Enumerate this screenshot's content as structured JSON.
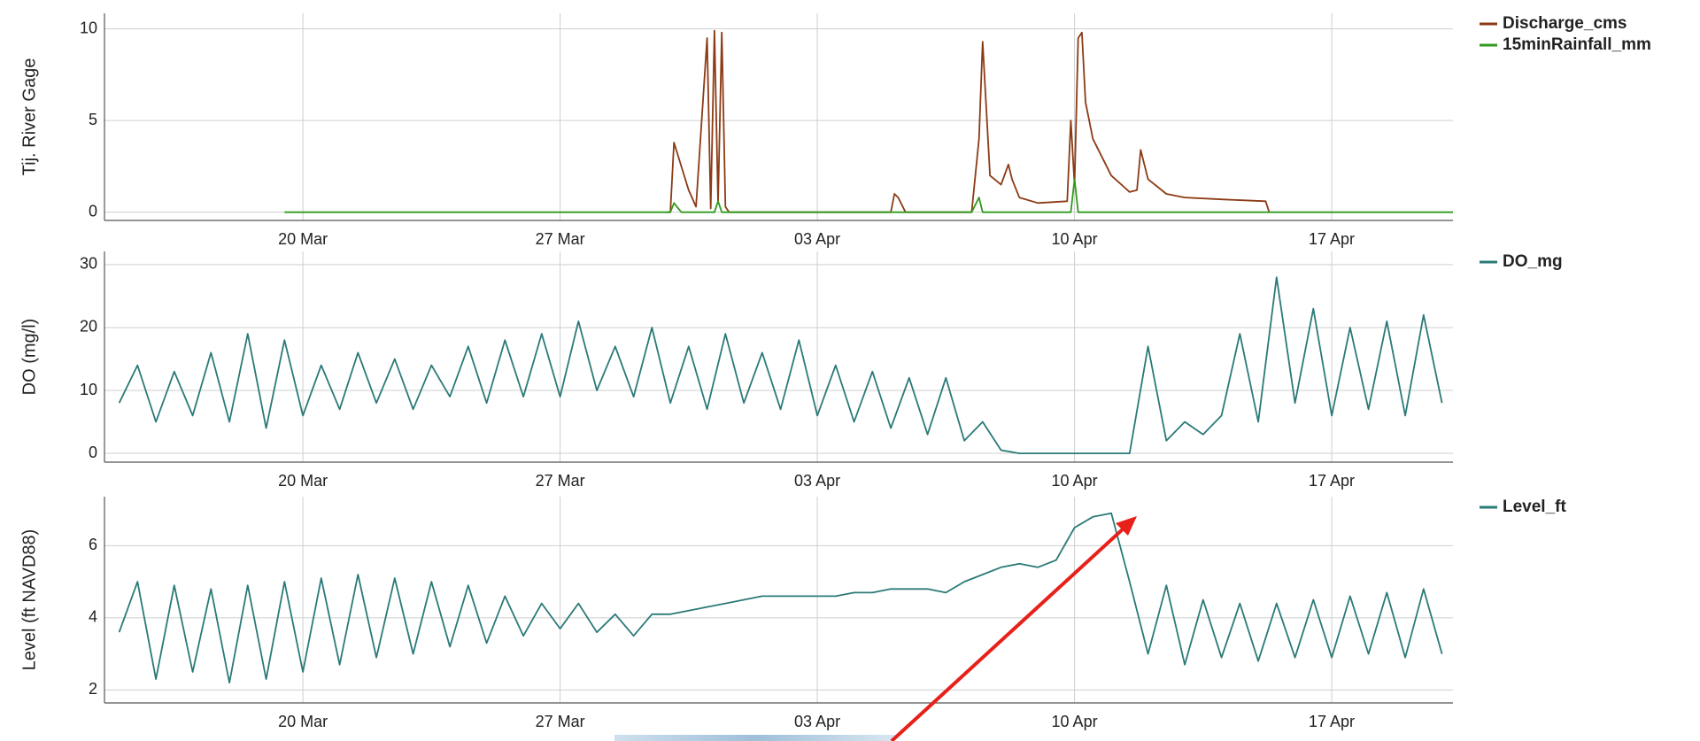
{
  "chart_data": [
    {
      "type": "line",
      "y_label": "Tij. River Gage",
      "grid": true,
      "legend": "right",
      "x": [
        19.5,
        29.9,
        30.0,
        30.1,
        30.3,
        30.5,
        30.7,
        31.0,
        31.1,
        31.2,
        31.3,
        31.4,
        31.5,
        31.6,
        36.0,
        36.1,
        36.2,
        36.4,
        38.2,
        38.4,
        38.5,
        38.7,
        39.0,
        39.2,
        39.3,
        39.5,
        40.0,
        40.8,
        40.9,
        41.0,
        41.1,
        41.2,
        41.3,
        41.5,
        42.0,
        42.5,
        42.7,
        42.8,
        43.0,
        43.5,
        44.0,
        45.0,
        46.2,
        46.3,
        51.3
      ],
      "series": [
        {
          "name": "Discharge_cms",
          "color": "#8b3a14",
          "values": [
            null,
            0,
            0,
            3.8,
            2.5,
            1.2,
            0.3,
            9.5,
            0.2,
            9.9,
            0.5,
            9.8,
            0.3,
            0,
            0,
            1.0,
            0.8,
            0,
            0,
            4.0,
            9.3,
            2.0,
            1.5,
            2.6,
            1.8,
            0.8,
            0.5,
            0.6,
            5.0,
            1.5,
            9.5,
            9.8,
            6.0,
            4.0,
            2.0,
            1.1,
            1.2,
            3.4,
            1.8,
            1.0,
            0.8,
            0.7,
            0.6,
            0,
            null
          ]
        },
        {
          "name": "15minRainfall_mm",
          "color": "#2f9a1c",
          "values": [
            0,
            0,
            0,
            0.5,
            0,
            0,
            0,
            0,
            0,
            0,
            0.6,
            0,
            0,
            0,
            0,
            0,
            0,
            0,
            0,
            0.8,
            0,
            0,
            0,
            0,
            0,
            0,
            0,
            0,
            0,
            1.8,
            0,
            0,
            0,
            0,
            0,
            0,
            0,
            0,
            0,
            0,
            0,
            0,
            0,
            0,
            0
          ]
        }
      ],
      "xlim": [
        14.6,
        51.3
      ],
      "xticks": [
        {
          "value": 20,
          "label": "20 Mar"
        },
        {
          "value": 27,
          "label": "27 Mar"
        },
        {
          "value": 34,
          "label": "03 Apr"
        },
        {
          "value": 41,
          "label": "10 Apr"
        },
        {
          "value": 48,
          "label": "17 Apr"
        }
      ],
      "ylim": [
        -0.45,
        10.85
      ],
      "yticks": [
        0,
        5,
        10
      ]
    },
    {
      "type": "line",
      "y_label": "DO (mg/l)",
      "grid": true,
      "legend": "right",
      "x": [
        15,
        15.5,
        16,
        16.5,
        17,
        17.5,
        18,
        18.5,
        19,
        19.5,
        20,
        20.5,
        21,
        21.5,
        22,
        22.5,
        23,
        23.5,
        24,
        24.5,
        25,
        25.5,
        26,
        26.5,
        27,
        27.5,
        28,
        28.5,
        29,
        29.5,
        30,
        30.5,
        31,
        31.5,
        32,
        32.5,
        33,
        33.5,
        34,
        34.5,
        35,
        35.5,
        36,
        36.5,
        37,
        37.5,
        38,
        38.5,
        39,
        39.5,
        40,
        40.5,
        41,
        41.5,
        42,
        42.5,
        43,
        43.5,
        44,
        44.5,
        45,
        45.5,
        46,
        46.5,
        47,
        47.5,
        48,
        48.5,
        49,
        49.5,
        50,
        50.5,
        51
      ],
      "series": [
        {
          "name": "DO_mg",
          "color": "#2a7a78",
          "values": [
            8,
            14,
            5,
            13,
            6,
            16,
            5,
            19,
            4,
            18,
            6,
            14,
            7,
            16,
            8,
            15,
            7,
            14,
            9,
            17,
            8,
            18,
            9,
            19,
            9,
            21,
            10,
            17,
            9,
            20,
            8,
            17,
            7,
            19,
            8,
            16,
            7,
            18,
            6,
            14,
            5,
            13,
            4,
            12,
            3,
            12,
            2,
            5,
            0.5,
            0,
            0,
            0,
            0,
            0,
            0,
            0,
            17,
            2,
            5,
            3,
            6,
            19,
            5,
            28,
            8,
            23,
            6,
            20,
            7,
            21,
            6,
            22,
            8
          ]
        }
      ],
      "xlim": [
        14.6,
        51.3
      ],
      "xticks": [
        {
          "value": 20,
          "label": "20 Mar"
        },
        {
          "value": 27,
          "label": "27 Mar"
        },
        {
          "value": 34,
          "label": "03 Apr"
        },
        {
          "value": 41,
          "label": "10 Apr"
        },
        {
          "value": 48,
          "label": "17 Apr"
        }
      ],
      "ylim": [
        -1.4,
        32.1
      ],
      "yticks": [
        0,
        10,
        20,
        30
      ]
    },
    {
      "type": "line",
      "y_label": "Level (ft NAVD88)",
      "grid": true,
      "legend": "right",
      "x": [
        15,
        15.5,
        16,
        16.5,
        17,
        17.5,
        18,
        18.5,
        19,
        19.5,
        20,
        20.5,
        21,
        21.5,
        22,
        22.5,
        23,
        23.5,
        24,
        24.5,
        25,
        25.5,
        26,
        26.5,
        27,
        27.5,
        28,
        28.5,
        29,
        29.5,
        30,
        30.5,
        31,
        31.5,
        32,
        32.5,
        33,
        33.5,
        34,
        34.5,
        35,
        35.5,
        36,
        36.5,
        37,
        37.5,
        38,
        38.5,
        39,
        39.5,
        40,
        40.5,
        41,
        41.5,
        42,
        42.5,
        43,
        43.5,
        44,
        44.5,
        45,
        45.5,
        46,
        46.5,
        47,
        47.5,
        48,
        48.5,
        49,
        49.5,
        50,
        50.5,
        51
      ],
      "series": [
        {
          "name": "Level_ft",
          "color": "#2a7a78",
          "values": [
            3.6,
            5.0,
            2.3,
            4.9,
            2.5,
            4.8,
            2.2,
            4.9,
            2.3,
            5.0,
            2.5,
            5.1,
            2.7,
            5.2,
            2.9,
            5.1,
            3.0,
            5.0,
            3.2,
            4.9,
            3.3,
            4.6,
            3.5,
            4.4,
            3.7,
            4.4,
            3.6,
            4.1,
            3.5,
            4.1,
            4.1,
            4.2,
            4.3,
            4.4,
            4.5,
            4.6,
            4.6,
            4.6,
            4.6,
            4.6,
            4.7,
            4.7,
            4.8,
            4.8,
            4.8,
            4.7,
            5.0,
            5.2,
            5.4,
            5.5,
            5.4,
            5.6,
            6.5,
            6.8,
            6.9,
            5.0,
            3.0,
            4.9,
            2.7,
            4.5,
            2.9,
            4.4,
            2.8,
            4.4,
            2.9,
            4.5,
            2.9,
            4.6,
            3.0,
            4.7,
            2.9,
            4.8,
            3.0
          ]
        }
      ],
      "xlim": [
        14.6,
        51.3
      ],
      "xticks": [
        {
          "value": 20,
          "label": "20 Mar"
        },
        {
          "value": 27,
          "label": "27 Mar"
        },
        {
          "value": 34,
          "label": "03 Apr"
        },
        {
          "value": 41,
          "label": "10 Apr"
        },
        {
          "value": 48,
          "label": "17 Apr"
        }
      ],
      "ylim": [
        1.64,
        7.36
      ],
      "yticks": [
        2,
        4,
        6
      ]
    }
  ]
}
